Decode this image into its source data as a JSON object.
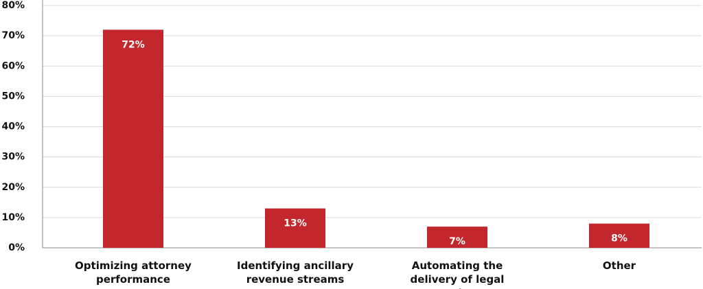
{
  "chart_data": {
    "type": "bar",
    "categories": [
      "Optimizing attorney performance",
      "Identifying ancillary revenue streams",
      "Automating the delivery of legal services",
      "Other"
    ],
    "values": [
      72,
      13,
      7,
      8
    ],
    "value_labels": [
      "72%",
      "13%",
      "7%",
      "8%"
    ],
    "color": "#c1272d",
    "ylim": [
      0,
      80
    ],
    "yticks": [
      {
        "value": 0,
        "label": "0%"
      },
      {
        "value": 10,
        "label": "10%"
      },
      {
        "value": 20,
        "label": "20%"
      },
      {
        "value": 30,
        "label": "30%"
      },
      {
        "value": 40,
        "label": "40%"
      },
      {
        "value": 50,
        "label": "50%"
      },
      {
        "value": 60,
        "label": "60%"
      },
      {
        "value": 70,
        "label": "70%"
      },
      {
        "value": 80,
        "label": "80%"
      }
    ],
    "grid": true
  }
}
